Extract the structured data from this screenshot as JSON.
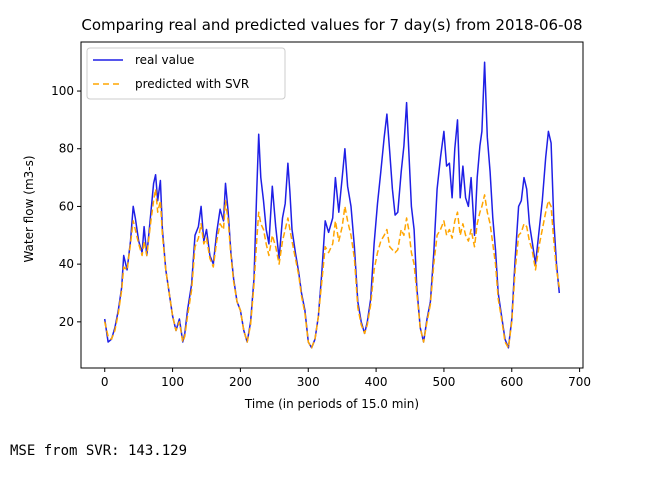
{
  "output": {
    "mse_text": "MSE from SVR: 143.129"
  },
  "colors": {
    "real": "#1f1fe6",
    "predicted": "#ffa500"
  },
  "chart_data": {
    "type": "line",
    "title": "Comparing real and predicted values for 7 day(s) from 2018-06-08",
    "xlabel": "Time (in periods of 15.0 min)",
    "ylabel": "Water flow (m3-s)",
    "xlim": [
      -35,
      705
    ],
    "ylim": [
      4,
      117
    ],
    "xticks": [
      0,
      100,
      200,
      300,
      400,
      500,
      600,
      700
    ],
    "yticks": [
      20,
      40,
      60,
      80,
      100
    ],
    "legend_position": "upper-left",
    "grid": false,
    "series": [
      {
        "name": "real value",
        "style": "solid",
        "points": [
          [
            0,
            21
          ],
          [
            5,
            13
          ],
          [
            10,
            14
          ],
          [
            15,
            18
          ],
          [
            20,
            24
          ],
          [
            25,
            32
          ],
          [
            28,
            43
          ],
          [
            33,
            38
          ],
          [
            38,
            48
          ],
          [
            42,
            60
          ],
          [
            45,
            56
          ],
          [
            50,
            48
          ],
          [
            55,
            44
          ],
          [
            58,
            53
          ],
          [
            62,
            43
          ],
          [
            68,
            58
          ],
          [
            72,
            68
          ],
          [
            75,
            71
          ],
          [
            78,
            62
          ],
          [
            82,
            69
          ],
          [
            85,
            52
          ],
          [
            90,
            38
          ],
          [
            95,
            30
          ],
          [
            100,
            22
          ],
          [
            105,
            17
          ],
          [
            110,
            21
          ],
          [
            115,
            13
          ],
          [
            118,
            16
          ],
          [
            122,
            24
          ],
          [
            128,
            33
          ],
          [
            133,
            50
          ],
          [
            138,
            53
          ],
          [
            142,
            60
          ],
          [
            146,
            48
          ],
          [
            150,
            52
          ],
          [
            155,
            43
          ],
          [
            160,
            40
          ],
          [
            165,
            51
          ],
          [
            170,
            59
          ],
          [
            175,
            55
          ],
          [
            178,
            68
          ],
          [
            182,
            58
          ],
          [
            186,
            44
          ],
          [
            190,
            35
          ],
          [
            195,
            27
          ],
          [
            200,
            24
          ],
          [
            205,
            17
          ],
          [
            210,
            13
          ],
          [
            215,
            20
          ],
          [
            220,
            35
          ],
          [
            224,
            65
          ],
          [
            227,
            85
          ],
          [
            230,
            70
          ],
          [
            234,
            62
          ],
          [
            238,
            52
          ],
          [
            242,
            47
          ],
          [
            247,
            67
          ],
          [
            252,
            53
          ],
          [
            257,
            42
          ],
          [
            262,
            56
          ],
          [
            266,
            61
          ],
          [
            270,
            75
          ],
          [
            273,
            65
          ],
          [
            276,
            52
          ],
          [
            281,
            44
          ],
          [
            286,
            37
          ],
          [
            290,
            30
          ],
          [
            295,
            24
          ],
          [
            300,
            13
          ],
          [
            305,
            11
          ],
          [
            310,
            14
          ],
          [
            315,
            22
          ],
          [
            320,
            37
          ],
          [
            325,
            55
          ],
          [
            330,
            51
          ],
          [
            336,
            56
          ],
          [
            340,
            70
          ],
          [
            345,
            58
          ],
          [
            350,
            70
          ],
          [
            354,
            80
          ],
          [
            358,
            67
          ],
          [
            363,
            60
          ],
          [
            368,
            46
          ],
          [
            373,
            27
          ],
          [
            378,
            20
          ],
          [
            383,
            16
          ],
          [
            387,
            20
          ],
          [
            392,
            28
          ],
          [
            397,
            47
          ],
          [
            402,
            61
          ],
          [
            407,
            72
          ],
          [
            412,
            84
          ],
          [
            416,
            92
          ],
          [
            420,
            79
          ],
          [
            424,
            66
          ],
          [
            428,
            57
          ],
          [
            432,
            58
          ],
          [
            437,
            72
          ],
          [
            441,
            81
          ],
          [
            445,
            96
          ],
          [
            448,
            80
          ],
          [
            452,
            60
          ],
          [
            456,
            52
          ],
          [
            460,
            32
          ],
          [
            465,
            18
          ],
          [
            470,
            13
          ],
          [
            475,
            21
          ],
          [
            480,
            27
          ],
          [
            485,
            44
          ],
          [
            490,
            66
          ],
          [
            495,
            77
          ],
          [
            500,
            86
          ],
          [
            504,
            74
          ],
          [
            508,
            75
          ],
          [
            512,
            63
          ],
          [
            516,
            80
          ],
          [
            520,
            90
          ],
          [
            524,
            63
          ],
          [
            528,
            74
          ],
          [
            532,
            63
          ],
          [
            536,
            60
          ],
          [
            540,
            70
          ],
          [
            545,
            50
          ],
          [
            549,
            70
          ],
          [
            553,
            81
          ],
          [
            556,
            86
          ],
          [
            560,
            110
          ],
          [
            564,
            84
          ],
          [
            568,
            72
          ],
          [
            572,
            56
          ],
          [
            576,
            45
          ],
          [
            580,
            30
          ],
          [
            585,
            22
          ],
          [
            590,
            14
          ],
          [
            595,
            11
          ],
          [
            600,
            21
          ],
          [
            605,
            42
          ],
          [
            610,
            60
          ],
          [
            614,
            62
          ],
          [
            618,
            70
          ],
          [
            622,
            66
          ],
          [
            626,
            54
          ],
          [
            630,
            48
          ],
          [
            635,
            40
          ],
          [
            640,
            51
          ],
          [
            645,
            62
          ],
          [
            650,
            77
          ],
          [
            654,
            86
          ],
          [
            658,
            82
          ],
          [
            662,
            55
          ],
          [
            666,
            40
          ],
          [
            670,
            30
          ]
        ]
      },
      {
        "name": "predicted with SVR",
        "style": "dashed",
        "points": [
          [
            0,
            20
          ],
          [
            5,
            15
          ],
          [
            10,
            14
          ],
          [
            15,
            17
          ],
          [
            20,
            23
          ],
          [
            25,
            31
          ],
          [
            28,
            39
          ],
          [
            33,
            38
          ],
          [
            38,
            47
          ],
          [
            42,
            55
          ],
          [
            45,
            52
          ],
          [
            50,
            47
          ],
          [
            55,
            43
          ],
          [
            58,
            48
          ],
          [
            62,
            43
          ],
          [
            68,
            55
          ],
          [
            72,
            62
          ],
          [
            75,
            66
          ],
          [
            78,
            58
          ],
          [
            82,
            62
          ],
          [
            85,
            50
          ],
          [
            90,
            38
          ],
          [
            95,
            30
          ],
          [
            100,
            22
          ],
          [
            105,
            17
          ],
          [
            110,
            20
          ],
          [
            115,
            13
          ],
          [
            118,
            15
          ],
          [
            122,
            22
          ],
          [
            128,
            31
          ],
          [
            133,
            46
          ],
          [
            138,
            49
          ],
          [
            142,
            54
          ],
          [
            146,
            47
          ],
          [
            150,
            49
          ],
          [
            155,
            42
          ],
          [
            160,
            39
          ],
          [
            165,
            48
          ],
          [
            170,
            54
          ],
          [
            175,
            52
          ],
          [
            178,
            62
          ],
          [
            182,
            55
          ],
          [
            186,
            43
          ],
          [
            190,
            34
          ],
          [
            195,
            27
          ],
          [
            200,
            24
          ],
          [
            205,
            17
          ],
          [
            210,
            13
          ],
          [
            215,
            19
          ],
          [
            220,
            33
          ],
          [
            224,
            48
          ],
          [
            227,
            58
          ],
          [
            230,
            54
          ],
          [
            234,
            52
          ],
          [
            238,
            47
          ],
          [
            242,
            43
          ],
          [
            247,
            50
          ],
          [
            252,
            46
          ],
          [
            257,
            40
          ],
          [
            262,
            48
          ],
          [
            266,
            52
          ],
          [
            270,
            56
          ],
          [
            273,
            52
          ],
          [
            276,
            48
          ],
          [
            281,
            42
          ],
          [
            286,
            36
          ],
          [
            290,
            29
          ],
          [
            295,
            23
          ],
          [
            300,
            13
          ],
          [
            305,
            11
          ],
          [
            310,
            14
          ],
          [
            315,
            22
          ],
          [
            320,
            34
          ],
          [
            325,
            46
          ],
          [
            330,
            44
          ],
          [
            336,
            47
          ],
          [
            340,
            55
          ],
          [
            345,
            48
          ],
          [
            350,
            53
          ],
          [
            354,
            60
          ],
          [
            358,
            55
          ],
          [
            363,
            50
          ],
          [
            368,
            42
          ],
          [
            373,
            25
          ],
          [
            378,
            19
          ],
          [
            383,
            16
          ],
          [
            387,
            19
          ],
          [
            392,
            26
          ],
          [
            397,
            38
          ],
          [
            402,
            44
          ],
          [
            407,
            48
          ],
          [
            412,
            50
          ],
          [
            416,
            52
          ],
          [
            420,
            46
          ],
          [
            424,
            45
          ],
          [
            428,
            44
          ],
          [
            432,
            45
          ],
          [
            437,
            52
          ],
          [
            441,
            50
          ],
          [
            445,
            56
          ],
          [
            448,
            52
          ],
          [
            452,
            44
          ],
          [
            456,
            40
          ],
          [
            460,
            30
          ],
          [
            465,
            18
          ],
          [
            470,
            13
          ],
          [
            475,
            20
          ],
          [
            480,
            26
          ],
          [
            485,
            40
          ],
          [
            490,
            50
          ],
          [
            495,
            52
          ],
          [
            500,
            55
          ],
          [
            504,
            50
          ],
          [
            508,
            52
          ],
          [
            512,
            49
          ],
          [
            516,
            55
          ],
          [
            520,
            58
          ],
          [
            524,
            50
          ],
          [
            528,
            54
          ],
          [
            532,
            50
          ],
          [
            536,
            48
          ],
          [
            540,
            52
          ],
          [
            545,
            46
          ],
          [
            549,
            54
          ],
          [
            553,
            58
          ],
          [
            556,
            60
          ],
          [
            560,
            64
          ],
          [
            564,
            58
          ],
          [
            568,
            54
          ],
          [
            572,
            47
          ],
          [
            576,
            40
          ],
          [
            580,
            28
          ],
          [
            585,
            21
          ],
          [
            590,
            13
          ],
          [
            595,
            11
          ],
          [
            600,
            20
          ],
          [
            605,
            38
          ],
          [
            610,
            50
          ],
          [
            614,
            51
          ],
          [
            618,
            54
          ],
          [
            622,
            53
          ],
          [
            626,
            48
          ],
          [
            630,
            45
          ],
          [
            635,
            38
          ],
          [
            640,
            46
          ],
          [
            645,
            52
          ],
          [
            650,
            58
          ],
          [
            654,
            62
          ],
          [
            658,
            60
          ],
          [
            662,
            48
          ],
          [
            666,
            38
          ],
          [
            670,
            32
          ]
        ]
      }
    ]
  }
}
